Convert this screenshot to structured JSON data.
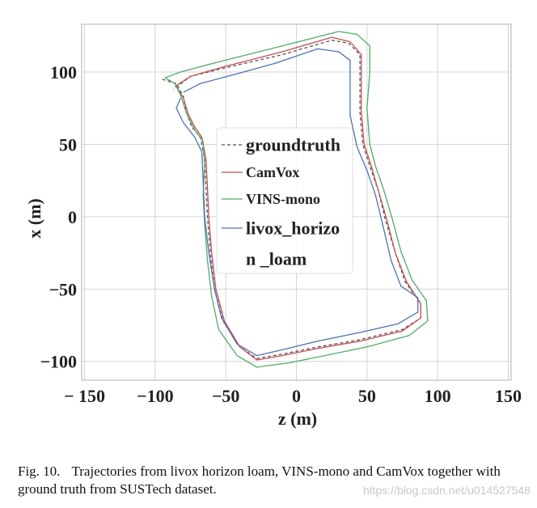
{
  "chart_data": {
    "type": "line",
    "xlabel": "z (m)",
    "ylabel": "x (m)",
    "xlim": [
      -152,
      152
    ],
    "ylim": [
      -113,
      133
    ],
    "xticks": [
      -150,
      -100,
      -50,
      0,
      50,
      100,
      150
    ],
    "xtick_labels": [
      "− 150",
      "−100",
      "−50",
      "0",
      "50",
      "100",
      "150"
    ],
    "yticks": [
      -100,
      -50,
      0,
      50,
      100
    ],
    "ytick_labels": [
      "−100",
      "−50",
      "0",
      "50",
      "100"
    ],
    "grid": true,
    "legend_position": "center",
    "series": [
      {
        "name": "groundtruth",
        "color": "#555555",
        "dash": "4,3",
        "points": [
          [
            -95,
            95
          ],
          [
            -85,
            92
          ],
          [
            -80,
            83
          ],
          [
            -78,
            72
          ],
          [
            -74,
            62
          ],
          [
            -68,
            55
          ],
          [
            -65,
            40
          ],
          [
            -64,
            20
          ],
          [
            -63,
            0
          ],
          [
            -61,
            -25
          ],
          [
            -58,
            -50
          ],
          [
            -52,
            -72
          ],
          [
            -40,
            -90
          ],
          [
            -28,
            -98
          ],
          [
            -10,
            -95
          ],
          [
            15,
            -90
          ],
          [
            45,
            -85
          ],
          [
            75,
            -78
          ],
          [
            88,
            -70
          ],
          [
            88,
            -60
          ],
          [
            77,
            -45
          ],
          [
            70,
            -25
          ],
          [
            63,
            -2
          ],
          [
            58,
            18
          ],
          [
            52,
            35
          ],
          [
            47,
            50
          ],
          [
            45,
            72
          ],
          [
            45,
            95
          ],
          [
            45,
            112
          ],
          [
            37,
            120
          ],
          [
            25,
            122
          ],
          [
            -10,
            112
          ],
          [
            -50,
            103
          ],
          [
            -75,
            97
          ],
          [
            -87,
            88
          ]
        ]
      },
      {
        "name": "CamVox",
        "color": "#c44e52",
        "points": [
          [
            -85,
            90
          ],
          [
            -80,
            82
          ],
          [
            -77,
            72
          ],
          [
            -72,
            62
          ],
          [
            -67,
            55
          ],
          [
            -64,
            40
          ],
          [
            -63,
            20
          ],
          [
            -62,
            0
          ],
          [
            -60,
            -25
          ],
          [
            -57,
            -50
          ],
          [
            -51,
            -72
          ],
          [
            -40,
            -90
          ],
          [
            -28,
            -99
          ],
          [
            -10,
            -96
          ],
          [
            15,
            -91
          ],
          [
            45,
            -86
          ],
          [
            75,
            -79
          ],
          [
            88,
            -70
          ],
          [
            88,
            -60
          ],
          [
            78,
            -45
          ],
          [
            70,
            -25
          ],
          [
            64,
            -2
          ],
          [
            58,
            18
          ],
          [
            53,
            35
          ],
          [
            48,
            50
          ],
          [
            46,
            72
          ],
          [
            46,
            95
          ],
          [
            46,
            112
          ],
          [
            38,
            121
          ],
          [
            25,
            124
          ],
          [
            -10,
            114
          ],
          [
            -50,
            104
          ],
          [
            -75,
            97
          ],
          [
            -86,
            90
          ]
        ]
      },
      {
        "name": "VINS-mono",
        "color": "#55a868",
        "points": [
          [
            -93,
            96
          ],
          [
            -86,
            92
          ],
          [
            -82,
            84
          ],
          [
            -78,
            72
          ],
          [
            -72,
            60
          ],
          [
            -66,
            52
          ],
          [
            -65,
            35
          ],
          [
            -66,
            15
          ],
          [
            -65,
            -5
          ],
          [
            -63,
            -30
          ],
          [
            -60,
            -55
          ],
          [
            -55,
            -78
          ],
          [
            -42,
            -96
          ],
          [
            -28,
            -104
          ],
          [
            -5,
            -101
          ],
          [
            20,
            -96
          ],
          [
            50,
            -90
          ],
          [
            80,
            -82
          ],
          [
            93,
            -72
          ],
          [
            92,
            -58
          ],
          [
            82,
            -44
          ],
          [
            74,
            -24
          ],
          [
            68,
            -2
          ],
          [
            62,
            18
          ],
          [
            56,
            35
          ],
          [
            52,
            50
          ],
          [
            50,
            75
          ],
          [
            52,
            100
          ],
          [
            52,
            118
          ],
          [
            43,
            126
          ],
          [
            30,
            128
          ],
          [
            -10,
            118
          ],
          [
            -55,
            107
          ],
          [
            -82,
            100
          ],
          [
            -93,
            96
          ]
        ]
      },
      {
        "name": "livox_horizon_loam",
        "color": "#4c72b0",
        "points": [
          [
            -82,
            82
          ],
          [
            -85,
            75
          ],
          [
            -80,
            65
          ],
          [
            -72,
            55
          ],
          [
            -67,
            45
          ],
          [
            -66,
            25
          ],
          [
            -65,
            0
          ],
          [
            -62,
            -25
          ],
          [
            -58,
            -50
          ],
          [
            -53,
            -70
          ],
          [
            -42,
            -88
          ],
          [
            -28,
            -96
          ],
          [
            -10,
            -92
          ],
          [
            15,
            -86
          ],
          [
            45,
            -80
          ],
          [
            72,
            -74
          ],
          [
            86,
            -66
          ],
          [
            86,
            -56
          ],
          [
            74,
            -48
          ],
          [
            67,
            -30
          ],
          [
            61,
            -5
          ],
          [
            56,
            15
          ],
          [
            50,
            32
          ],
          [
            43,
            48
          ],
          [
            38,
            70
          ],
          [
            38,
            95
          ],
          [
            38,
            108
          ],
          [
            30,
            114
          ],
          [
            15,
            116
          ],
          [
            -15,
            106
          ],
          [
            -45,
            98
          ],
          [
            -68,
            92
          ],
          [
            -80,
            86
          ]
        ]
      }
    ]
  },
  "legend": {
    "items": [
      {
        "label": "groundtruth",
        "size": 22
      },
      {
        "label": "CamVox",
        "size": 18
      },
      {
        "label": "VINS-mono",
        "size": 18
      },
      {
        "label": "livox_horizo",
        "size": 22
      },
      {
        "label": "n _loam",
        "size": 22
      }
    ]
  },
  "caption": {
    "fig_num": "Fig. 10.",
    "text": "Trajectories from livox horizon loam, VINS-mono and CamVox together with ground truth from SUSTech dataset."
  },
  "watermark": "https://blog.csdn.net/u014527548"
}
